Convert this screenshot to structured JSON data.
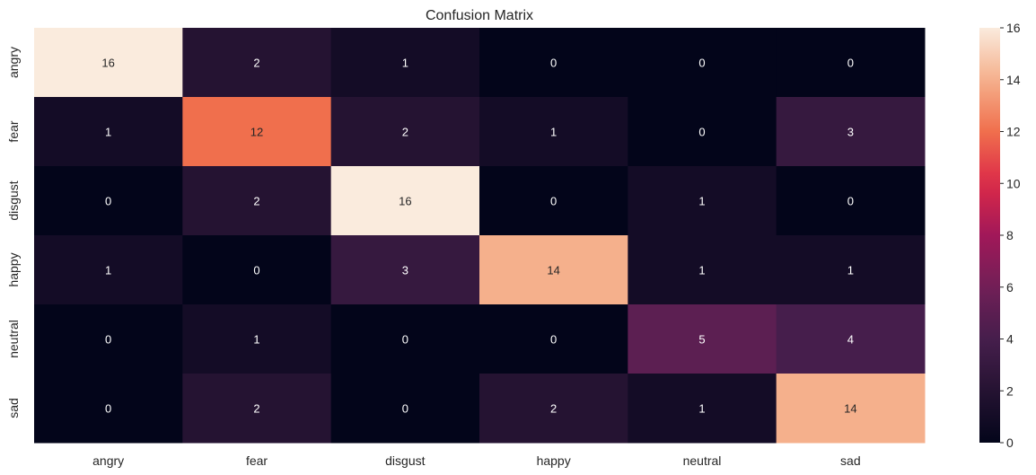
{
  "chart_data": {
    "type": "heatmap",
    "title": "Confusion Matrix",
    "xlabel": "",
    "ylabel": "",
    "x_categories": [
      "angry",
      "fear",
      "disgust",
      "happy",
      "neutral",
      "sad"
    ],
    "y_categories": [
      "angry",
      "fear",
      "disgust",
      "happy",
      "neutral",
      "sad"
    ],
    "values": [
      [
        16,
        2,
        1,
        0,
        0,
        0
      ],
      [
        1,
        12,
        2,
        1,
        0,
        3
      ],
      [
        0,
        2,
        16,
        0,
        1,
        0
      ],
      [
        1,
        0,
        3,
        14,
        1,
        1
      ],
      [
        0,
        1,
        0,
        0,
        5,
        4
      ],
      [
        0,
        2,
        0,
        2,
        1,
        14
      ]
    ],
    "colorbar": {
      "min": 0,
      "max": 16,
      "ticks": [
        0,
        2,
        4,
        6,
        8,
        10,
        12,
        14,
        16
      ],
      "colormap": "rocket"
    },
    "annotations": true,
    "grid": false,
    "legend": "colorbar-right"
  }
}
